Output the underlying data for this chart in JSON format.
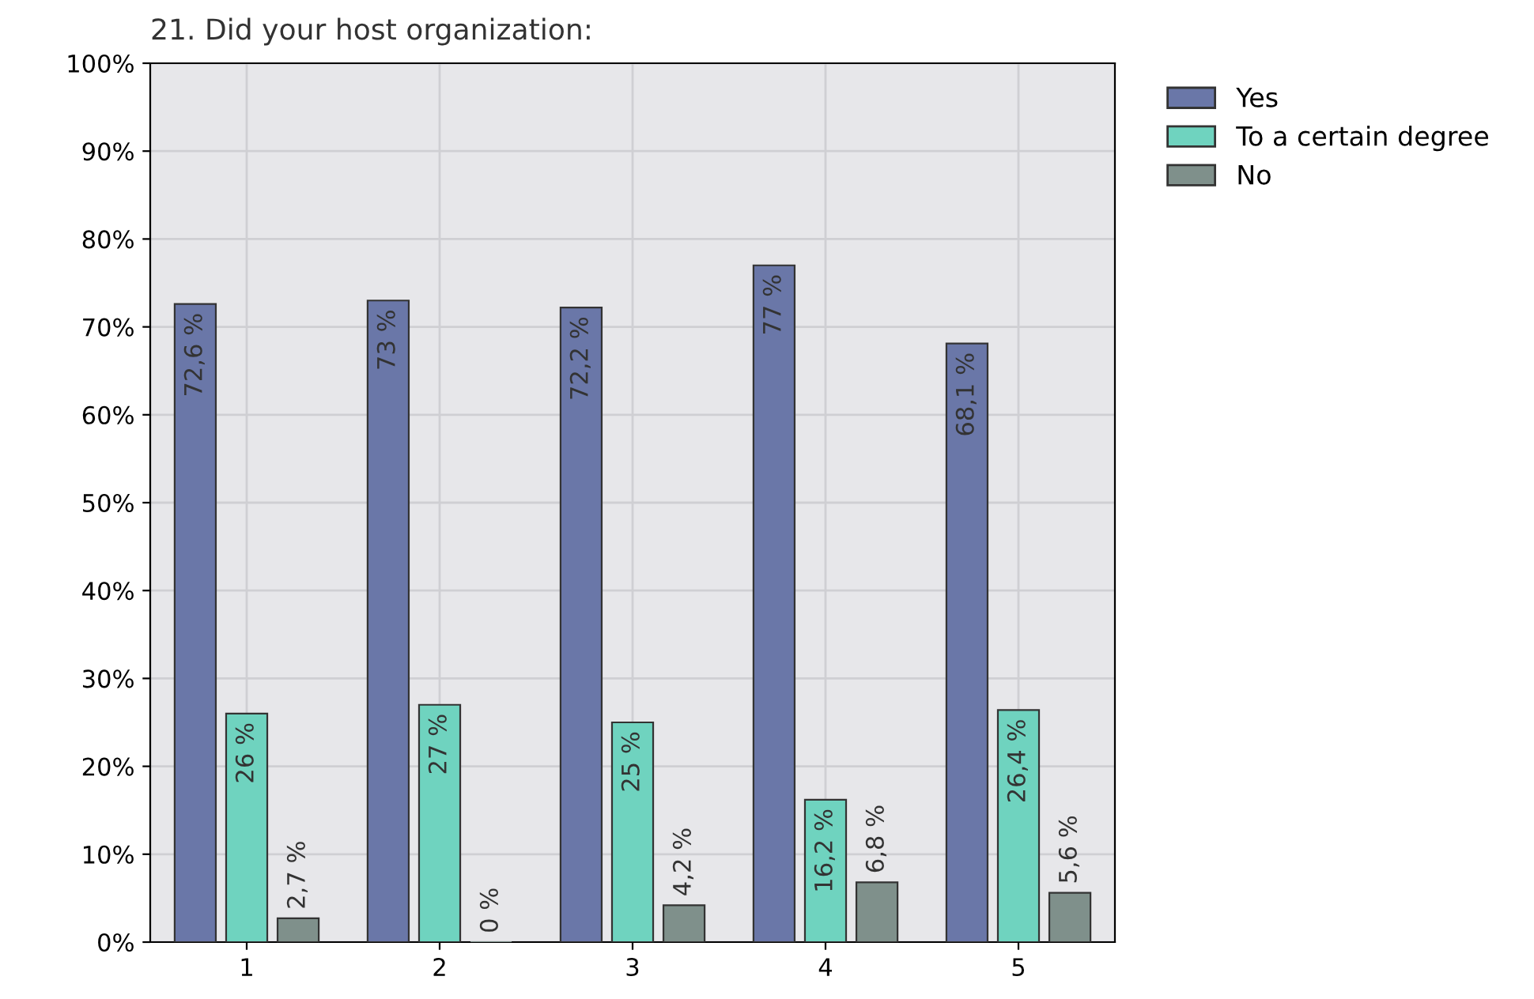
{
  "chart_data": {
    "type": "bar",
    "title": "21. Did your host organization:",
    "categories": [
      "1",
      "2",
      "3",
      "4",
      "5"
    ],
    "series": [
      {
        "name": "Yes",
        "color": "#6a77a8",
        "values": [
          72.6,
          73,
          72.2,
          77,
          68.1
        ],
        "value_labels": [
          "72,6 %",
          "73 %",
          "72,2 %",
          "77 %",
          "68,1 %"
        ]
      },
      {
        "name": "To a certain degree",
        "color": "#6fd3bf",
        "values": [
          26,
          27,
          25,
          16.2,
          26.4
        ],
        "value_labels": [
          "26 %",
          "27 %",
          "25 %",
          "16,2 %",
          "26,4 %"
        ]
      },
      {
        "name": "No",
        "color": "#7f908b",
        "values": [
          2.7,
          0,
          4.2,
          6.8,
          5.6
        ],
        "value_labels": [
          "2,7 %",
          "0 %",
          "4,2 %",
          "6,8 %",
          "5,6 %"
        ]
      }
    ],
    "ylim": [
      0,
      100
    ],
    "yticks": [
      {
        "value": 0,
        "label": "0%"
      },
      {
        "value": 10,
        "label": "10%"
      },
      {
        "value": 20,
        "label": "20%"
      },
      {
        "value": 30,
        "label": "30%"
      },
      {
        "value": 40,
        "label": "40%"
      },
      {
        "value": 50,
        "label": "50%"
      },
      {
        "value": 60,
        "label": "60%"
      },
      {
        "value": 70,
        "label": "70%"
      },
      {
        "value": 80,
        "label": "80%"
      },
      {
        "value": 90,
        "label": "90%"
      },
      {
        "value": 100,
        "label": "100%"
      }
    ],
    "grid": true,
    "legend": "top right"
  }
}
